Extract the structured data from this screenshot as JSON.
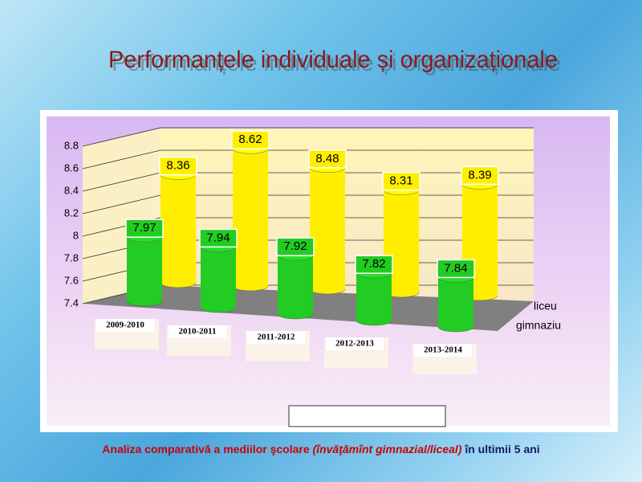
{
  "chart_data": {
    "type": "bar3d",
    "title": "Performanțele individuale și organizaționale",
    "caption": [
      "Analiza comparativă a mediilor şcolare",
      "(învăţămînt gimnazial/liceal)",
      "în ultimii 5 ani"
    ],
    "categories": [
      "2009-2010",
      "2010-2011",
      "2011-2012",
      "2012-2013",
      "2013-2014"
    ],
    "series": [
      {
        "name": "gimnaziu",
        "color": "#22cc22",
        "values": [
          7.97,
          7.94,
          7.92,
          7.82,
          7.84
        ]
      },
      {
        "name": "liceu",
        "color": "#ffee00",
        "values": [
          8.36,
          8.62,
          8.48,
          8.31,
          8.39
        ]
      }
    ],
    "ylim": [
      7.4,
      8.8
    ],
    "yticks": [
      7.4,
      7.6,
      7.8,
      8,
      8.2,
      8.4,
      8.6,
      8.8
    ],
    "grid": true,
    "legend": "bottom"
  }
}
